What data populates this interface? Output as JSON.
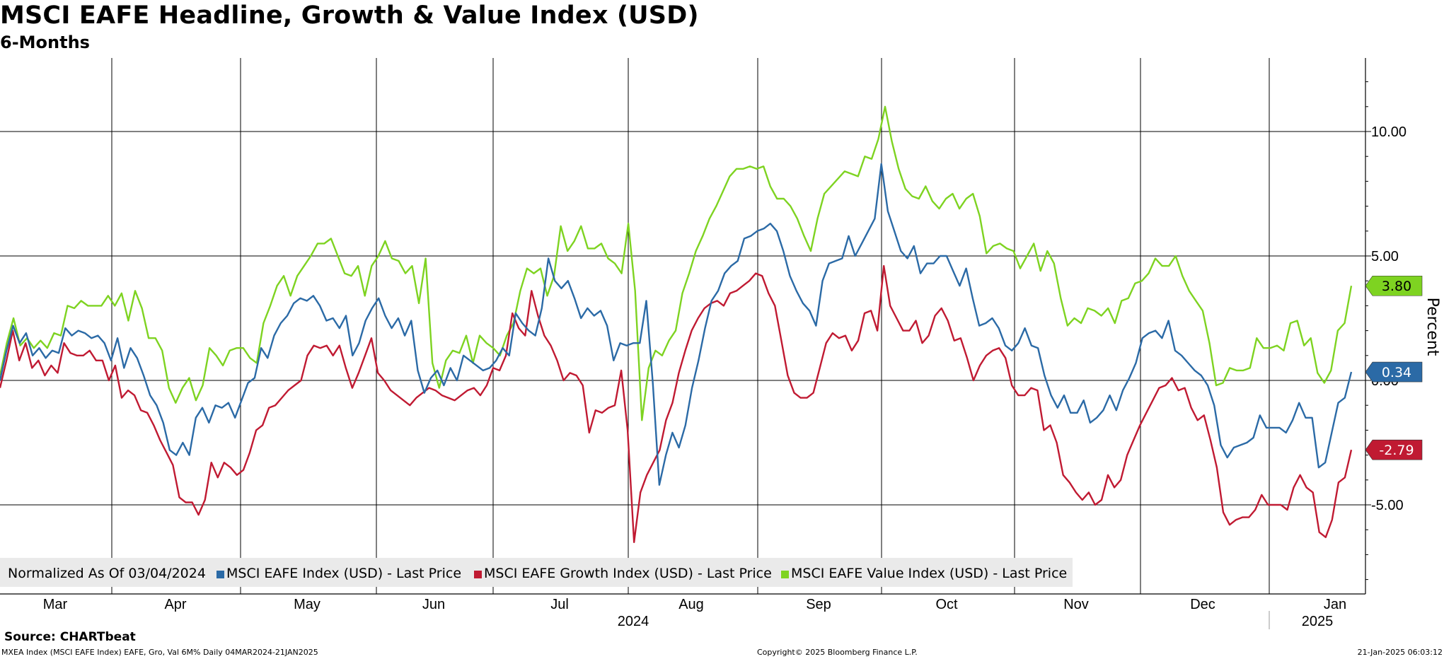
{
  "header": {
    "title": "MSCI EAFE Headline, Growth & Value Index (USD)",
    "subtitle": "6-Months"
  },
  "footer": {
    "source": "Source: CHARTbeat",
    "meta_left": "MXEA Index (MSCI EAFE Index) EAFE, Gro, Val 6M%  Daily 04MAR2024-21JAN2025",
    "copyright": "Copyright© 2025 Bloomberg Finance L.P.",
    "timestamp": "21-Jan-2025 06:03:12"
  },
  "colors": {
    "headline": "#2b6aa6",
    "growth": "#c01a32",
    "value": "#7ed321",
    "grid": "#000000"
  },
  "chart_data": {
    "type": "line",
    "title": "MSCI EAFE Headline, Growth & Value Index (USD)",
    "subtitle": "6-Months",
    "xlabel": "",
    "ylabel": "Percent",
    "ylim": [
      -8.5,
      13.0
    ],
    "yticks": [
      {
        "value": 10,
        "label": "10.00"
      },
      {
        "value": 5,
        "label": "5.00"
      },
      {
        "value": 0,
        "label": "0.00"
      },
      {
        "value": -5,
        "label": "-5.00"
      }
    ],
    "months": [
      "Mar",
      "Apr",
      "May",
      "Jun",
      "Jul",
      "Aug",
      "Sep",
      "Oct",
      "Nov",
      "Dec",
      "Jan"
    ],
    "years": [
      "2024",
      "2025"
    ],
    "legend_prefix": "Normalized As Of 03/04/2024",
    "grid": true,
    "series": [
      {
        "name": "MSCI EAFE Index (USD) - Last Price",
        "color": "#2b6aa6",
        "last": "0.34",
        "values": [
          0,
          1.2,
          2.2,
          1.5,
          1.9,
          1.0,
          1.3,
          0.9,
          1.2,
          1.1,
          2.1,
          1.8,
          2.0,
          1.9,
          1.7,
          1.8,
          1.5,
          0.8,
          1.7,
          0.5,
          1.3,
          0.9,
          0.2,
          -0.6,
          -1.0,
          -1.7,
          -2.8,
          -3.0,
          -2.5,
          -3.0,
          -1.5,
          -1.1,
          -1.7,
          -1.0,
          -1.1,
          -0.9,
          -1.5,
          -0.8,
          -0.1,
          0.1,
          1.3,
          0.9,
          1.8,
          2.3,
          2.6,
          3.1,
          3.3,
          3.2,
          3.4,
          3.0,
          2.4,
          2.5,
          2.1,
          2.6,
          1.0,
          1.5,
          2.4,
          2.9,
          3.3,
          2.6,
          2.1,
          2.5,
          1.8,
          2.4,
          0.4,
          -0.5,
          0.1,
          0.4,
          -0.2,
          0.5,
          0.0,
          1.0,
          0.8,
          0.6,
          0.4,
          0.5,
          0.8,
          1.3,
          1.0,
          2.7,
          2.3,
          2.0,
          1.8,
          2.9,
          4.9,
          4.0,
          3.7,
          4.0,
          3.3,
          2.5,
          2.9,
          2.6,
          2.8,
          2.2,
          0.8,
          1.5,
          1.4,
          1.5,
          1.5,
          3.2,
          -0.1,
          -4.2,
          -3.0,
          -2.1,
          -2.7,
          -1.8,
          -0.3,
          0.8,
          2.1,
          3.2,
          3.6,
          4.3,
          4.6,
          4.8,
          5.7,
          5.8,
          6.0,
          6.1,
          6.3,
          6.0,
          5.2,
          4.2,
          3.6,
          3.1,
          2.8,
          2.2,
          4.0,
          4.7,
          4.8,
          4.9,
          5.8,
          5.0,
          5.5,
          6.0,
          6.5,
          8.7,
          6.8,
          6.0,
          5.2,
          4.9,
          5.4,
          4.3,
          4.7,
          4.7,
          5.0,
          5.0,
          4.4,
          3.8,
          4.5,
          3.3,
          2.2,
          2.3,
          2.5,
          2.1,
          1.4,
          1.2,
          1.5,
          2.1,
          1.4,
          1.3,
          0.2,
          -0.6,
          -1.1,
          -0.6,
          -1.3,
          -1.3,
          -0.8,
          -1.7,
          -1.5,
          -1.2,
          -0.6,
          -1.2,
          -0.4,
          0.1,
          0.7,
          1.7,
          1.9,
          2.0,
          1.7,
          2.4,
          1.2,
          1.0,
          0.7,
          0.4,
          0.2,
          -0.2,
          -1.0,
          -2.6,
          -3.1,
          -2.7,
          -2.6,
          -2.5,
          -2.3,
          -1.4,
          -1.9,
          -1.9,
          -1.9,
          -2.1,
          -1.6,
          -0.9,
          -1.5,
          -1.5,
          -3.5,
          -3.3,
          -2.1,
          -0.9,
          -0.7,
          0.34
        ]
      },
      {
        "name": "MSCI EAFE Growth Index (USD) - Last Price",
        "color": "#c01a32",
        "last": "-2.79",
        "values": [
          -0.3,
          0.8,
          2.0,
          0.8,
          1.5,
          0.5,
          0.8,
          0.2,
          0.6,
          0.3,
          1.5,
          1.1,
          1.0,
          1.0,
          1.2,
          0.8,
          0.8,
          0.0,
          0.6,
          -0.7,
          -0.4,
          -0.6,
          -1.2,
          -1.3,
          -1.8,
          -2.4,
          -2.9,
          -3.4,
          -4.7,
          -4.9,
          -4.9,
          -5.4,
          -4.8,
          -3.3,
          -3.9,
          -3.3,
          -3.5,
          -3.8,
          -3.6,
          -2.9,
          -2.0,
          -1.8,
          -1.1,
          -1.0,
          -0.7,
          -0.4,
          -0.2,
          0.0,
          1.0,
          1.4,
          1.3,
          1.4,
          1.0,
          1.4,
          0.5,
          -0.3,
          0.3,
          1.0,
          1.7,
          0.3,
          0.0,
          -0.4,
          -0.6,
          -0.8,
          -1.0,
          -0.7,
          -0.5,
          -0.3,
          -0.4,
          -0.6,
          -0.7,
          -0.8,
          -0.6,
          -0.4,
          -0.3,
          -0.6,
          -0.2,
          0.5,
          0.4,
          1.0,
          2.7,
          2.1,
          1.8,
          3.6,
          2.6,
          1.8,
          1.4,
          0.8,
          0.0,
          0.3,
          0.2,
          -0.2,
          -2.1,
          -1.2,
          -1.3,
          -1.1,
          -1.0,
          0.4,
          -2.0,
          -6.5,
          -4.5,
          -3.8,
          -3.3,
          -2.8,
          -1.6,
          -0.9,
          0.3,
          1.2,
          2.0,
          2.5,
          2.9,
          3.1,
          3.2,
          3.0,
          3.5,
          3.6,
          3.8,
          4.0,
          4.3,
          4.2,
          3.5,
          3.0,
          1.6,
          0.2,
          -0.5,
          -0.7,
          -0.7,
          -0.5,
          0.5,
          1.5,
          1.9,
          1.7,
          1.8,
          1.2,
          1.6,
          2.7,
          2.8,
          2.0,
          4.6,
          3.0,
          2.5,
          2.0,
          2.0,
          2.4,
          1.5,
          1.8,
          2.6,
          2.9,
          2.4,
          1.6,
          1.7,
          0.9,
          0.0,
          0.6,
          1.0,
          1.2,
          1.3,
          0.9,
          -0.2,
          -0.6,
          -0.6,
          -0.3,
          -0.4,
          -2.0,
          -1.8,
          -2.5,
          -3.8,
          -4.1,
          -4.5,
          -4.8,
          -4.5,
          -5.0,
          -4.8,
          -3.8,
          -4.3,
          -4.0,
          -3.0,
          -2.4,
          -1.8,
          -1.3,
          -0.8,
          -0.3,
          -0.2,
          0.1,
          -0.4,
          -0.3,
          -1.1,
          -1.6,
          -1.4,
          -2.4,
          -3.5,
          -5.3,
          -5.8,
          -5.6,
          -5.5,
          -5.5,
          -5.2,
          -4.6,
          -5.0,
          -5.0,
          -5.0,
          -5.2,
          -4.3,
          -3.8,
          -4.3,
          -4.5,
          -6.1,
          -6.3,
          -5.6,
          -4.1,
          -3.9,
          -2.79
        ]
      },
      {
        "name": "MSCI EAFE Value Index (USD) - Last Price",
        "color": "#7ed321",
        "last": "3.80",
        "values": [
          0.2,
          1.5,
          2.5,
          1.4,
          1.7,
          1.3,
          1.6,
          1.3,
          1.9,
          1.8,
          3.0,
          2.9,
          3.2,
          3.0,
          3.0,
          3.0,
          3.4,
          3.0,
          3.5,
          2.4,
          3.6,
          2.9,
          1.7,
          1.7,
          1.2,
          -0.3,
          -0.9,
          -0.3,
          0.1,
          -0.8,
          -0.2,
          1.3,
          1.0,
          0.6,
          1.2,
          1.3,
          1.3,
          0.9,
          0.7,
          2.3,
          3.0,
          3.8,
          4.2,
          3.4,
          4.2,
          4.6,
          5.0,
          5.5,
          5.5,
          5.7,
          5.0,
          4.3,
          4.2,
          4.6,
          3.4,
          4.6,
          5.0,
          5.6,
          4.9,
          4.8,
          4.3,
          4.6,
          3.1,
          4.9,
          0.7,
          -0.3,
          0.8,
          1.2,
          1.1,
          1.8,
          0.7,
          1.8,
          1.5,
          1.3,
          1.0,
          1.8,
          2.3,
          3.6,
          4.5,
          4.3,
          4.5,
          3.4,
          4.2,
          6.2,
          5.2,
          5.6,
          6.2,
          5.3,
          5.3,
          5.5,
          4.9,
          4.7,
          4.3,
          6.3,
          3.6,
          -1.6,
          0.5,
          1.2,
          1.0,
          1.6,
          2.0,
          3.5,
          4.3,
          5.2,
          5.8,
          6.5,
          7.0,
          7.6,
          8.2,
          8.5,
          8.5,
          8.6,
          8.5,
          8.6,
          7.8,
          7.3,
          7.3,
          7.0,
          6.5,
          5.8,
          5.2,
          6.5,
          7.5,
          7.8,
          8.1,
          8.4,
          8.3,
          8.2,
          9.0,
          8.9,
          9.7,
          11.0,
          9.6,
          8.5,
          7.7,
          7.4,
          7.3,
          7.8,
          7.2,
          6.9,
          7.3,
          7.5,
          6.9,
          7.3,
          7.5,
          6.6,
          5.1,
          5.4,
          5.5,
          5.3,
          5.2,
          4.5,
          5.0,
          5.5,
          4.4,
          5.2,
          4.7,
          3.3,
          2.2,
          2.5,
          2.3,
          2.9,
          2.8,
          2.6,
          2.9,
          2.3,
          3.2,
          3.3,
          3.9,
          4.0,
          4.3,
          4.9,
          4.6,
          4.6,
          5.0,
          4.2,
          3.6,
          3.2,
          2.8,
          1.5,
          -0.2,
          -0.1,
          0.5,
          0.4,
          0.4,
          0.5,
          1.7,
          1.3,
          1.3,
          1.4,
          1.2,
          2.3,
          2.4,
          1.4,
          1.7,
          0.3,
          -0.1,
          0.4,
          2.0,
          2.3,
          3.8
        ]
      }
    ]
  }
}
